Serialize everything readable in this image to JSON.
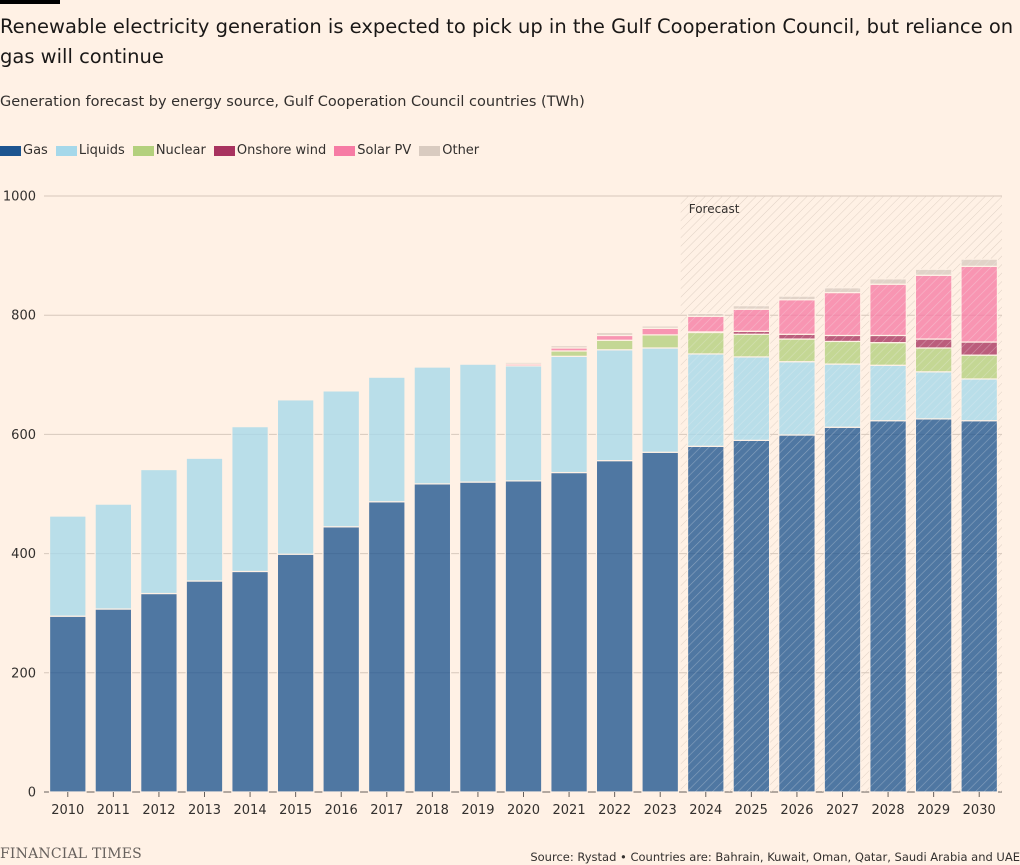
{
  "header": {
    "title": "Renewable electricity generation is expected to pick up in the Gulf Cooperation Council, but reliance on gas will continue",
    "subtitle": "Generation forecast by energy source, Gulf Cooperation Council countries (TWh)"
  },
  "legend": [
    {
      "label": "Gas",
      "color": "#1d5590"
    },
    {
      "label": "Liquids",
      "color": "#a5d8ea"
    },
    {
      "label": "Nuclear",
      "color": "#b3d07d"
    },
    {
      "label": "Onshore wind",
      "color": "#a8335f"
    },
    {
      "label": "Solar PV",
      "color": "#f67ba4"
    },
    {
      "label": "Other",
      "color": "#d9cbc0"
    }
  ],
  "footer": {
    "logo": "FINANCIAL TIMES",
    "source": "Source: Rystad • Countries are: Bahrain, Kuwait, Oman, Qatar, Saudi Arabia and UAE"
  },
  "chart_data": {
    "type": "bar",
    "stacked": true,
    "title": "Renewable electricity generation is expected to pick up in the Gulf Cooperation Council, but reliance on gas will continue",
    "ylabel": "TWh",
    "ylim": [
      0,
      1000
    ],
    "yticks": [
      0,
      200,
      400,
      600,
      800,
      1000
    ],
    "categories": [
      "2010",
      "2011",
      "2012",
      "2013",
      "2014",
      "2015",
      "2016",
      "2017",
      "2018",
      "2019",
      "2020",
      "2021",
      "2022",
      "2023",
      "2024",
      "2025",
      "2026",
      "2027",
      "2028",
      "2029",
      "2030"
    ],
    "annotation": {
      "text": "Forecast",
      "from": "2024",
      "to": "2030"
    },
    "series": [
      {
        "name": "Gas",
        "color": "#1d5590",
        "values": [
          295,
          307,
          333,
          354,
          370,
          399,
          445,
          487,
          517,
          520,
          522,
          536,
          556,
          570,
          580,
          590,
          599,
          612,
          623,
          626,
          623
        ]
      },
      {
        "name": "Liquids",
        "color": "#a5d8ea",
        "values": [
          168,
          176,
          208,
          206,
          243,
          259,
          228,
          209,
          196,
          198,
          193,
          195,
          186,
          175,
          155,
          140,
          123,
          106,
          93,
          79,
          70
        ]
      },
      {
        "name": "Nuclear",
        "color": "#b3d07d",
        "values": [
          0,
          0,
          0,
          0,
          0,
          0,
          0,
          0,
          0,
          0,
          0,
          9,
          16,
          22,
          36,
          38,
          38,
          38,
          38,
          40,
          40
        ]
      },
      {
        "name": "Onshore wind",
        "color": "#a8335f",
        "values": [
          0,
          0,
          0,
          0,
          0,
          0,
          0,
          0,
          0,
          0,
          0,
          0,
          0,
          0,
          1,
          5,
          8,
          10,
          12,
          15,
          22
        ]
      },
      {
        "name": "Solar PV",
        "color": "#f67ba4",
        "values": [
          0,
          0,
          0,
          0,
          0,
          0,
          0,
          0,
          0,
          2,
          3,
          5,
          8,
          11,
          26,
          37,
          58,
          72,
          86,
          107,
          127
        ]
      },
      {
        "name": "Other",
        "color": "#d9cbc0",
        "values": [
          0,
          0,
          0,
          0,
          0,
          0,
          0,
          0,
          0,
          2,
          3,
          4,
          5,
          4,
          5,
          6,
          6,
          8,
          9,
          10,
          12
        ]
      }
    ]
  }
}
